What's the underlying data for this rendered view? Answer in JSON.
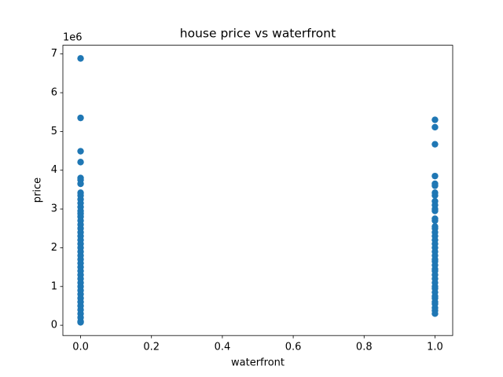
{
  "chart_data": {
    "type": "scatter",
    "title": "house price vs waterfront",
    "x_label": "waterfront",
    "y_label": "price",
    "y_offset_label": "1e6",
    "color": "#1f77b4",
    "grid": false,
    "x": [
      0,
      0,
      0,
      0,
      0,
      0,
      0,
      0,
      0,
      0,
      0,
      0,
      0,
      0,
      0,
      0,
      0,
      0,
      0,
      0,
      0,
      0,
      0,
      0,
      0,
      0,
      0,
      0,
      0,
      0,
      0,
      0,
      0,
      0,
      0,
      0,
      0,
      0,
      0,
      0,
      0,
      0,
      0,
      1,
      1,
      1,
      1,
      1,
      1,
      1,
      1,
      1,
      1,
      1,
      1,
      1,
      1,
      1,
      1,
      1,
      1,
      1,
      1,
      1,
      1,
      1,
      1,
      1,
      1,
      1,
      1,
      1,
      1,
      1,
      1,
      1,
      1,
      1,
      1,
      1,
      1,
      1,
      1,
      1
    ],
    "values": [
      6.885,
      5.35,
      4.49,
      4.21,
      3.8,
      3.75,
      3.65,
      3.42,
      3.35,
      3.25,
      3.15,
      3.05,
      2.95,
      2.88,
      2.8,
      2.7,
      2.6,
      2.5,
      2.4,
      2.3,
      2.2,
      2.1,
      2.0,
      1.9,
      1.8,
      1.7,
      1.6,
      1.5,
      1.4,
      1.3,
      1.2,
      1.1,
      1.0,
      0.9,
      0.8,
      0.7,
      0.6,
      0.5,
      0.4,
      0.3,
      0.2,
      0.1,
      0.075,
      5.3,
      5.11,
      4.67,
      3.85,
      3.65,
      3.6,
      3.42,
      3.35,
      3.2,
      3.1,
      3.0,
      2.95,
      2.75,
      2.7,
      2.55,
      2.5,
      2.4,
      2.3,
      2.2,
      2.1,
      2.0,
      1.9,
      1.8,
      1.7,
      1.65,
      1.55,
      1.45,
      1.4,
      1.3,
      1.2,
      1.1,
      1.0,
      0.95,
      0.85,
      0.75,
      0.7,
      0.6,
      0.55,
      0.45,
      0.38,
      0.3
    ],
    "xlim": [
      -0.05,
      1.05
    ],
    "xticks": [
      {
        "value": 0,
        "label": "0.0"
      },
      0.2,
      0.4,
      0.6,
      0.8,
      {
        "value": 1,
        "label": "1.0"
      }
    ],
    "ylim": [
      -0.265,
      7.225
    ],
    "yticks": [
      0,
      1,
      2,
      3,
      4,
      5,
      6,
      7
    ]
  }
}
